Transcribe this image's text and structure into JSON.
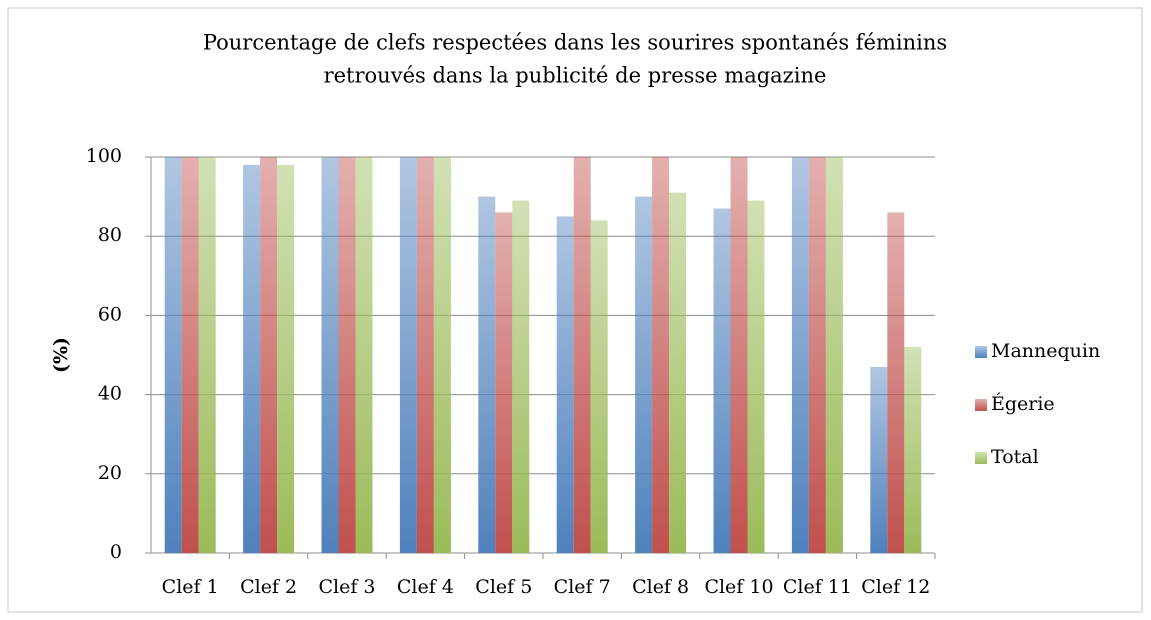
{
  "chart_data": {
    "type": "bar",
    "title": [
      "Pourcentage de clefs respectées dans les sourires spontanés féminins",
      "retrouvés dans la publicité de presse magazine"
    ],
    "y_label": "(%)",
    "categories": [
      "Clef 1",
      "Clef 2",
      "Clef 3",
      "Clef 4",
      "Clef 5",
      "Clef 7",
      "Clef 8",
      "Clef 10",
      "Clef 11",
      "Clef 12"
    ],
    "series": [
      {
        "name": "Mannequin",
        "color": "#4f81bd",
        "values": [
          100,
          98,
          100,
          100,
          90,
          85,
          90,
          87,
          100,
          47
        ]
      },
      {
        "name": "Égerie",
        "color": "#c0504d",
        "values": [
          100,
          100,
          100,
          100,
          86,
          100,
          100,
          100,
          100,
          86
        ]
      },
      {
        "name": "Total",
        "color": "#9bbb59",
        "values": [
          100,
          98,
          100,
          100,
          89,
          84,
          91,
          89,
          100,
          52
        ]
      }
    ],
    "ylim": [
      0,
      100
    ],
    "yticks": [
      0,
      20,
      40,
      60,
      80,
      100
    ],
    "grid": true,
    "legend": "right"
  }
}
